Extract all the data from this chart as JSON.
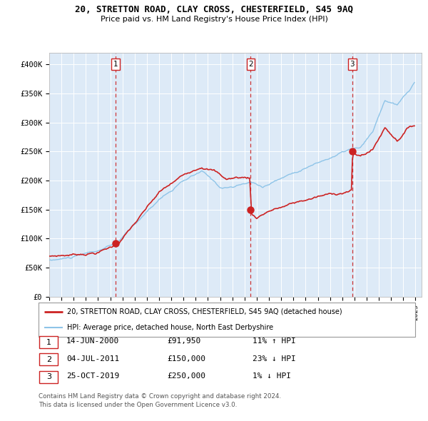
{
  "title": "20, STRETTON ROAD, CLAY CROSS, CHESTERFIELD, S45 9AQ",
  "subtitle": "Price paid vs. HM Land Registry's House Price Index (HPI)",
  "hpi_color": "#8ec4e8",
  "price_color": "#cc2222",
  "bg_color": "#ddeaf7",
  "sale_labels": [
    "1",
    "2",
    "3"
  ],
  "legend_line1": "20, STRETTON ROAD, CLAY CROSS, CHESTERFIELD, S45 9AQ (detached house)",
  "legend_line2": "HPI: Average price, detached house, North East Derbyshire",
  "table_data": [
    {
      "label": "1",
      "date": "14-JUN-2000",
      "price": "£91,950",
      "relation": "11% ↑ HPI"
    },
    {
      "label": "2",
      "date": "04-JUL-2011",
      "price": "£150,000",
      "relation": "23% ↓ HPI"
    },
    {
      "label": "3",
      "date": "25-OCT-2019",
      "price": "£250,000",
      "relation": "1% ↓ HPI"
    }
  ],
  "footer": "Contains HM Land Registry data © Crown copyright and database right 2024.\nThis data is licensed under the Open Government Licence v3.0.",
  "ylim": [
    0,
    420000
  ],
  "yticks": [
    0,
    50000,
    100000,
    150000,
    200000,
    250000,
    300000,
    350000,
    400000
  ],
  "ytick_labels": [
    "£0",
    "£50K",
    "£100K",
    "£150K",
    "£200K",
    "£250K",
    "£300K",
    "£350K",
    "£400K"
  ],
  "xstart": 1995.0,
  "xend": 2025.5,
  "sale_year_vals": [
    2000.458,
    2011.503,
    2019.814
  ],
  "sale_prices": [
    91950,
    150000,
    250000
  ]
}
